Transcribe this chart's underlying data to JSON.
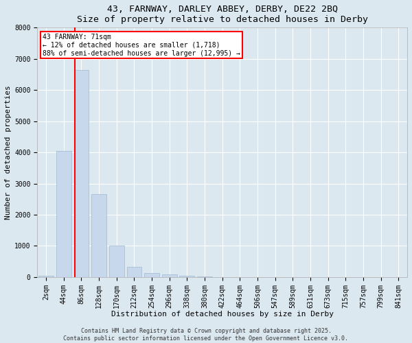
{
  "title1": "43, FARNWAY, DARLEY ABBEY, DERBY, DE22 2BQ",
  "title2": "Size of property relative to detached houses in Derby",
  "xlabel": "Distribution of detached houses by size in Derby",
  "ylabel": "Number of detached properties",
  "bar_color": "#c8d8ec",
  "bar_edge_color": "#a0b8d0",
  "background_color": "#dce8f0",
  "plot_bg_color": "#dce8f0",
  "fig_bg_color": "#dce8f0",
  "grid_color": "#ffffff",
  "categories": [
    "2sqm",
    "44sqm",
    "86sqm",
    "128sqm",
    "170sqm",
    "212sqm",
    "254sqm",
    "296sqm",
    "338sqm",
    "380sqm",
    "422sqm",
    "464sqm",
    "506sqm",
    "547sqm",
    "589sqm",
    "631sqm",
    "673sqm",
    "715sqm",
    "757sqm",
    "799sqm",
    "841sqm"
  ],
  "values": [
    50,
    4050,
    6650,
    2650,
    1000,
    330,
    130,
    80,
    40,
    20,
    5,
    2,
    1,
    0,
    0,
    0,
    0,
    0,
    0,
    0,
    0
  ],
  "ylim": [
    0,
    8000
  ],
  "yticks": [
    0,
    1000,
    2000,
    3000,
    4000,
    5000,
    6000,
    7000,
    8000
  ],
  "annotation_text": "43 FARNWAY: 71sqm\n← 12% of detached houses are smaller (1,718)\n88% of semi-detached houses are larger (12,995) →",
  "annotation_fontsize": 7.0,
  "footer1": "Contains HM Land Registry data © Crown copyright and database right 2025.",
  "footer2": "Contains public sector information licensed under the Open Government Licence v3.0.",
  "title_fontsize": 9.5,
  "axis_label_fontsize": 8.0,
  "tick_fontsize": 7.0,
  "footer_fontsize": 6.0
}
